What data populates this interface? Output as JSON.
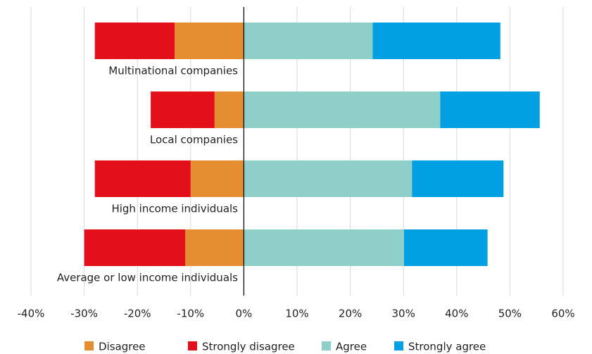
{
  "chart_data": {
    "type": "diverging_stacked_bar",
    "categories": [
      "Multinational companies",
      "Local companies",
      "High income individuals",
      "Average or low income individuals"
    ],
    "series": [
      {
        "name": "Disagree",
        "color": "#e58e31",
        "values": [
          -13,
          -5.5,
          -10,
          -11
        ]
      },
      {
        "name": "Strongly disagree",
        "color": "#e3101b",
        "values": [
          -15,
          -12,
          -18,
          -19
        ]
      },
      {
        "name": "Agree",
        "color": "#8ecfca",
        "values": [
          24.2,
          36.9,
          31.6,
          30.1
        ]
      },
      {
        "name": "Strongly agree",
        "color": "#00a0e3",
        "values": [
          24,
          18.7,
          17.2,
          15.7
        ]
      }
    ],
    "xlim": [
      -40,
      60
    ],
    "xticks": [
      {
        "value": -40,
        "label": "-40%"
      },
      {
        "value": -30,
        "label": "-30%"
      },
      {
        "value": -20,
        "label": "-20%"
      },
      {
        "value": -10,
        "label": "-10%"
      },
      {
        "value": 0,
        "label": "0%"
      },
      {
        "value": 10,
        "label": "10%"
      },
      {
        "value": 20,
        "label": "20%"
      },
      {
        "value": 30,
        "label": "30%"
      },
      {
        "value": 40,
        "label": "40%"
      },
      {
        "value": 50,
        "label": "50%"
      },
      {
        "value": 60,
        "label": "60%"
      }
    ],
    "grid": true,
    "legend": "bottom"
  }
}
